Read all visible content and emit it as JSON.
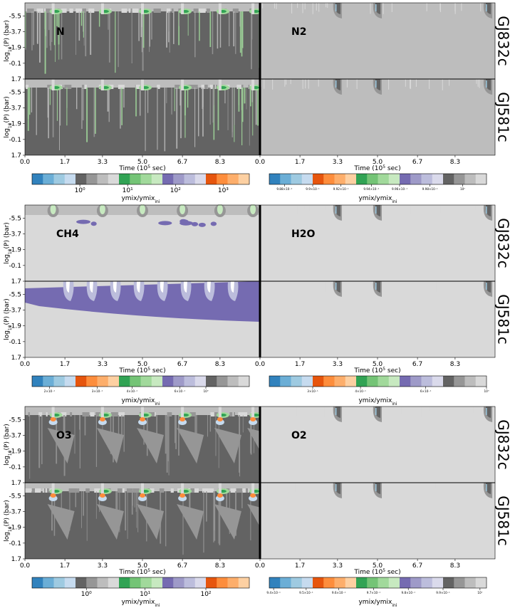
{
  "chart_data": {
    "type": "heatmap",
    "planets": [
      "GJ832c",
      "GJ581c"
    ],
    "x_axis": {
      "label": "Time (10",
      "label_sup": "5",
      "label_end": " sec)",
      "ticks": [
        "0.0",
        "1.7",
        "3.3",
        "5.0",
        "6.7",
        "8.3"
      ],
      "tick_values": [
        0.0,
        1.7,
        3.3,
        5.0,
        6.7,
        8.3
      ],
      "range": [
        0,
        10
      ]
    },
    "y_axis": {
      "label": "log",
      "label_sub": "10",
      "label_end": "(P) (bar)",
      "ticks": [
        "-5.5",
        "-3.7",
        "-1.9",
        "-0.1",
        "1.7"
      ],
      "tick_values": [
        -5.5,
        -3.7,
        -1.9,
        -0.1,
        1.7
      ],
      "range": [
        -7,
        1.7
      ]
    },
    "colorbar_label": "ymix/ymix",
    "colorbar_label_sub": "ini",
    "colorbar_colors": [
      "#3182bd",
      "#6baed6",
      "#9ecae1",
      "#c6dbef",
      "#636363",
      "#969696",
      "#bdbdbd",
      "#d9d9d9",
      "#31a354",
      "#74c476",
      "#a1d99b",
      "#c7e9c0",
      "#756bb1",
      "#9e9ac8",
      "#bcbddc",
      "#dadaeb",
      "#e6550d",
      "#fd8d3c",
      "#fdae6b",
      "#fdd0a2"
    ],
    "colorbar_colors_b": [
      "#3182bd",
      "#6baed6",
      "#9ecae1",
      "#c6dbef",
      "#e6550d",
      "#fd8d3c",
      "#fdae6b",
      "#fdd0a2",
      "#31a354",
      "#74c476",
      "#a1d99b",
      "#c7e9c0",
      "#756bb1",
      "#9e9ac8",
      "#bcbddc",
      "#dadaeb",
      "#636363",
      "#969696",
      "#bdbdbd",
      "#d9d9d9"
    ],
    "rows": [
      {
        "left": {
          "species": "N",
          "ticks": [
            "10⁰",
            "10¹",
            "10²",
            "10³"
          ],
          "tick_pos": [
            0.22,
            0.44,
            0.66,
            0.88
          ],
          "tiny": false
        },
        "right": {
          "species": "N2",
          "ticks": [
            "9.88×10⁻¹",
            "9.9×10⁻¹",
            "9.92×10⁻¹",
            "9.94×10⁻¹",
            "9.96×10⁻¹",
            "9.98×10⁻¹",
            "10⁰"
          ],
          "tick_pos": [
            0.07,
            0.2,
            0.33,
            0.47,
            0.6,
            0.74,
            0.89
          ],
          "tiny": true
        }
      },
      {
        "left": {
          "species": "CH4",
          "ticks": [
            "2×10⁻¹",
            "3×10⁻¹",
            "4×10⁻¹",
            "6×10⁻¹",
            "10⁰"
          ],
          "tick_pos": [
            0.08,
            0.3,
            0.46,
            0.68,
            0.8
          ],
          "tiny": true
        },
        "right": {
          "species": "H2O",
          "ticks": [
            "3×10⁻¹",
            "4×10⁻¹",
            "6×10⁻¹",
            "10⁰"
          ],
          "tick_pos": [
            0.2,
            0.42,
            0.72,
            1.0
          ],
          "tiny": true
        }
      },
      {
        "left": {
          "species": "O3",
          "ticks": [
            "10⁰",
            "10¹",
            "10²"
          ],
          "tick_pos": [
            0.25,
            0.52,
            0.8
          ],
          "tiny": false
        },
        "right": {
          "species": "O2",
          "ticks": [
            "9.4×10⁻¹",
            "9.5×10⁻¹",
            "9.6×10⁻¹",
            "9.7×10⁻¹",
            "9.8×10⁻¹",
            "9.9×10⁻¹",
            "10⁰"
          ],
          "tick_pos": [
            0.02,
            0.17,
            0.32,
            0.48,
            0.64,
            0.8,
            0.97
          ],
          "tiny": true
        }
      }
    ]
  }
}
